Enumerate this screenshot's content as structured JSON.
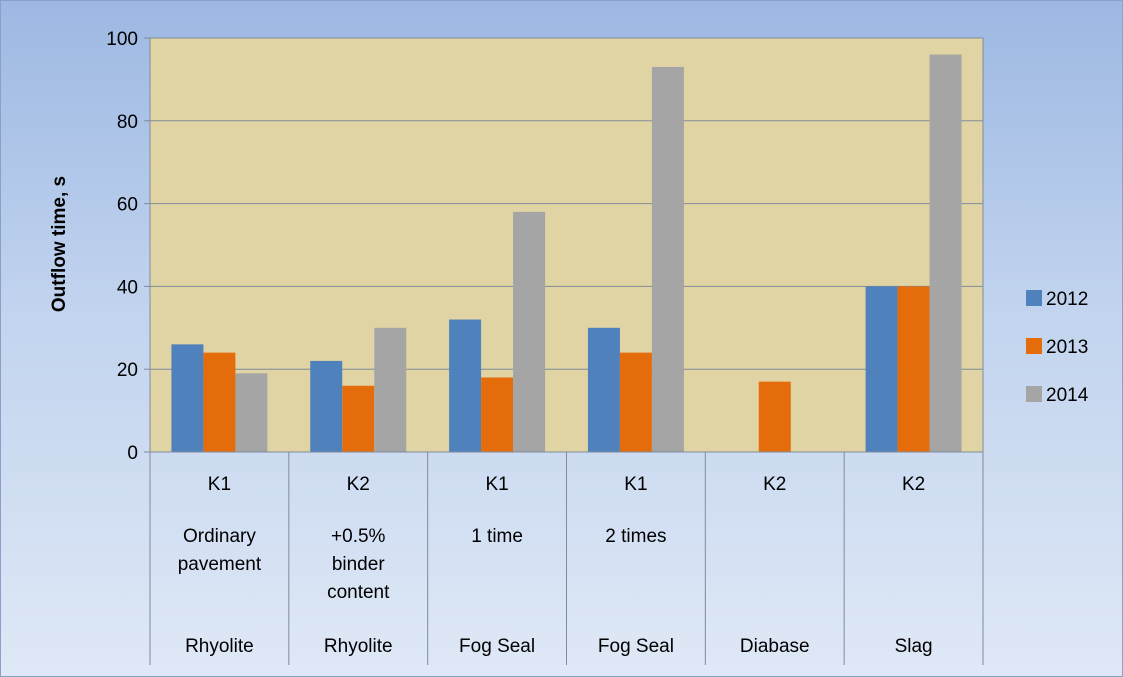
{
  "chart_data": {
    "type": "bar",
    "ylabel": "Outflow time, s",
    "ylim": [
      0,
      100
    ],
    "yticks": [
      0,
      20,
      40,
      60,
      80,
      100
    ],
    "grid": true,
    "legend_position": "right",
    "categories": [
      {
        "lines": [
          "K1",
          "Ordinary",
          "pavement",
          "Rhyolite"
        ]
      },
      {
        "lines": [
          "K2",
          "+0.5%",
          "binder",
          "content",
          "Rhyolite"
        ]
      },
      {
        "lines": [
          "K1",
          "1 time",
          "Fog Seal"
        ]
      },
      {
        "lines": [
          "K1",
          "2 times",
          "Fog Seal"
        ]
      },
      {
        "lines": [
          "K2",
          "Diabase"
        ]
      },
      {
        "lines": [
          "K2",
          "Slag"
        ]
      }
    ],
    "category_levels": [
      [
        "K1",
        "K2",
        "K1",
        "K1",
        "K2",
        "K2"
      ],
      [
        "Ordinary\npavement",
        "+0.5%\nbinder\ncontent",
        "1 time",
        "2 times",
        "",
        ""
      ],
      [
        "Rhyolite",
        "Rhyolite",
        "Fog Seal",
        "Fog Seal",
        "Diabase",
        "Slag"
      ]
    ],
    "series": [
      {
        "name": "2012",
        "color": "#4f81bd",
        "values": [
          26,
          22,
          32,
          30,
          null,
          40
        ]
      },
      {
        "name": "2013",
        "color": "#e46c0a",
        "values": [
          24,
          16,
          18,
          24,
          17,
          40
        ]
      },
      {
        "name": "2014",
        "color": "#a5a5a5",
        "values": [
          19,
          30,
          58,
          93,
          null,
          96
        ]
      }
    ],
    "plot_background": "#e0d4a4",
    "chart_background": "#b9cde9"
  }
}
